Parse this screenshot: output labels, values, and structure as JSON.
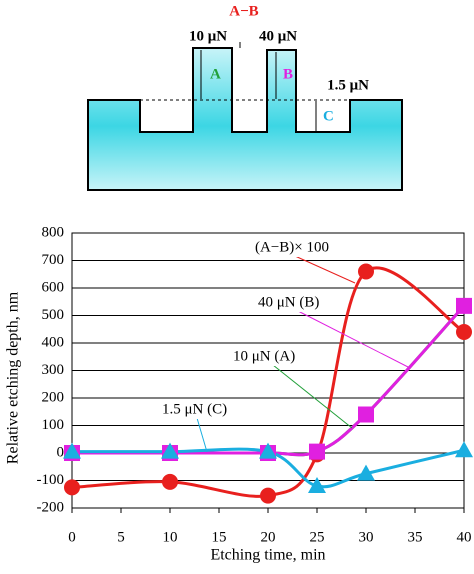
{
  "diagram": {
    "label_ab": "A−B",
    "label_10": "10 μN",
    "label_40": "40 μN",
    "label_15": "1.5 μN",
    "label_a": "A",
    "label_b": "B",
    "label_c": "C"
  },
  "chart_data": {
    "type": "line",
    "x_label": "Etching time, min",
    "y_label": "Relative etching depth, nm",
    "x": [
      0,
      10,
      20,
      25,
      30,
      40
    ],
    "series": [
      {
        "name": "(A−B)× 100",
        "color": "#e8201e",
        "marker": "circle",
        "values": [
          -125,
          -105,
          -155,
          -5,
          660,
          440
        ]
      },
      {
        "name": "10 μN (A)",
        "color": "#22a03a",
        "marker": "none",
        "values": [
          0,
          0,
          0,
          5,
          140,
          535
        ]
      },
      {
        "name": "40 μN (B)",
        "color": "#e020e0",
        "marker": "square",
        "values": [
          0,
          0,
          0,
          5,
          140,
          535
        ]
      },
      {
        "name": "1.5 μN (C)",
        "color": "#1aaee0",
        "marker": "triangle",
        "values": [
          5,
          5,
          5,
          -120,
          -75,
          10
        ]
      }
    ],
    "xlim": [
      0,
      40
    ],
    "xticks": [
      0,
      5,
      10,
      15,
      20,
      25,
      30,
      35,
      40
    ],
    "ylim": [
      -200,
      800
    ],
    "yticks": [
      -200,
      -100,
      0,
      100,
      200,
      300,
      400,
      500,
      600,
      700,
      800
    ],
    "grid": true
  }
}
